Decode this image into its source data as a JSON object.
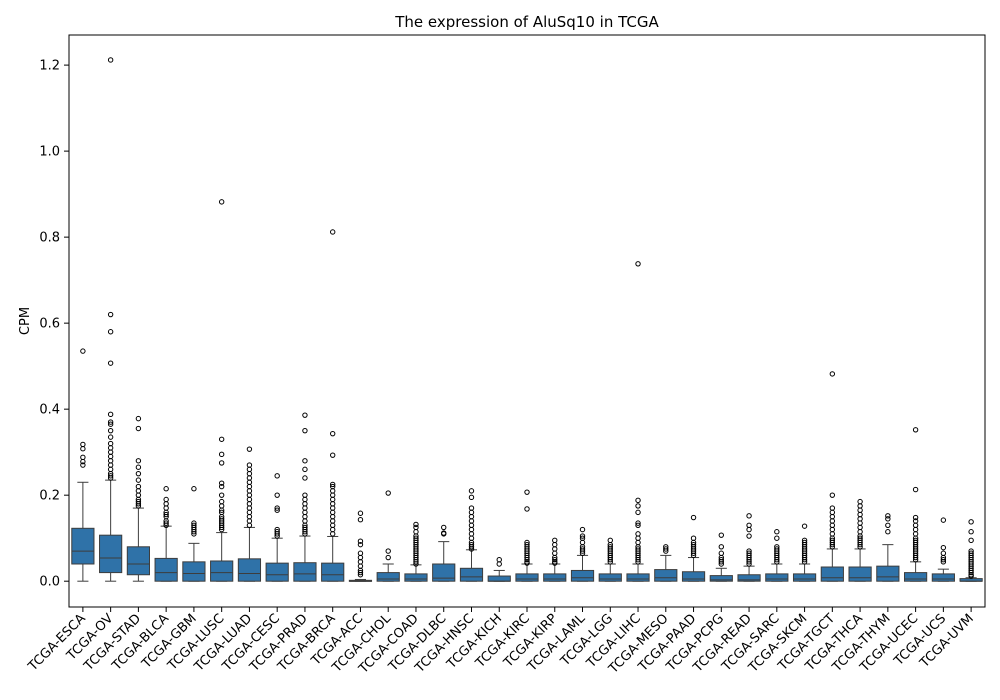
{
  "chart_data": {
    "type": "box",
    "title": "The expression of AluSq10 in TCGA",
    "xlabel": "",
    "ylabel": "CPM",
    "ylim": [
      -0.06,
      1.27
    ],
    "yticks": [
      0.0,
      0.2,
      0.4,
      0.6,
      0.8,
      1.0,
      1.2
    ],
    "ytick_labels": [
      "0.0",
      "0.2",
      "0.4",
      "0.6",
      "0.8",
      "1.0",
      "1.2"
    ],
    "box_color": "#2f72a8",
    "grid": false,
    "categories": [
      "TCGA-ESCA",
      "TCGA-OV",
      "TCGA-STAD",
      "TCGA-BLCA",
      "TCGA-GBM",
      "TCGA-LUSC",
      "TCGA-LUAD",
      "TCGA-CESC",
      "TCGA-PRAD",
      "TCGA-BRCA",
      "TCGA-ACC",
      "TCGA-CHOL",
      "TCGA-COAD",
      "TCGA-DLBC",
      "TCGA-HNSC",
      "TCGA-KICH",
      "TCGA-KIRC",
      "TCGA-KIRP",
      "TCGA-LAML",
      "TCGA-LGG",
      "TCGA-LIHC",
      "TCGA-MESO",
      "TCGA-PAAD",
      "TCGA-PCPG",
      "TCGA-READ",
      "TCGA-SARC",
      "TCGA-SKCM",
      "TCGA-TGCT",
      "TCGA-THCA",
      "TCGA-THYM",
      "TCGA-UCEC",
      "TCGA-UCS",
      "TCGA-UVM"
    ],
    "boxes": [
      {
        "min": 0.0,
        "q1": 0.04,
        "median": 0.07,
        "q3": 0.123,
        "max": 0.23,
        "outliers": [
          0.535,
          0.318,
          0.308,
          0.288,
          0.278,
          0.27
        ]
      },
      {
        "min": 0.0,
        "q1": 0.02,
        "median": 0.054,
        "q3": 0.107,
        "max": 0.235,
        "outliers": [
          1.212,
          0.62,
          0.58,
          0.507,
          0.388,
          0.37,
          0.365,
          0.35,
          0.335,
          0.32,
          0.31,
          0.3,
          0.29,
          0.28,
          0.27,
          0.26,
          0.25,
          0.245,
          0.24
        ]
      },
      {
        "min": 0.0,
        "q1": 0.015,
        "median": 0.04,
        "q3": 0.08,
        "max": 0.17,
        "outliers": [
          0.378,
          0.355,
          0.28,
          0.265,
          0.25,
          0.235,
          0.22,
          0.21,
          0.2,
          0.19,
          0.185,
          0.18,
          0.175
        ]
      },
      {
        "min": 0.0,
        "q1": 0.0,
        "median": 0.02,
        "q3": 0.053,
        "max": 0.128,
        "outliers": [
          0.215,
          0.19,
          0.18,
          0.17,
          0.16,
          0.155,
          0.15,
          0.14,
          0.135,
          0.13
        ]
      },
      {
        "min": 0.0,
        "q1": 0.0,
        "median": 0.018,
        "q3": 0.045,
        "max": 0.088,
        "outliers": [
          0.215,
          0.135,
          0.13,
          0.125,
          0.12,
          0.115,
          0.11
        ]
      },
      {
        "min": 0.0,
        "q1": 0.0,
        "median": 0.02,
        "q3": 0.047,
        "max": 0.113,
        "outliers": [
          0.882,
          0.33,
          0.295,
          0.275,
          0.228,
          0.22,
          0.2,
          0.185,
          0.175,
          0.165,
          0.16,
          0.15,
          0.145,
          0.14,
          0.135,
          0.13,
          0.125,
          0.12
        ]
      },
      {
        "min": 0.0,
        "q1": 0.0,
        "median": 0.018,
        "q3": 0.052,
        "max": 0.125,
        "outliers": [
          0.307,
          0.27,
          0.26,
          0.25,
          0.24,
          0.23,
          0.22,
          0.21,
          0.2,
          0.19,
          0.18,
          0.17,
          0.16,
          0.15,
          0.14,
          0.13
        ]
      },
      {
        "min": 0.0,
        "q1": 0.0,
        "median": 0.015,
        "q3": 0.042,
        "max": 0.1,
        "outliers": [
          0.245,
          0.2,
          0.17,
          0.165,
          0.12,
          0.115,
          0.11,
          0.105
        ]
      },
      {
        "min": 0.0,
        "q1": 0.0,
        "median": 0.017,
        "q3": 0.043,
        "max": 0.105,
        "outliers": [
          0.386,
          0.35,
          0.28,
          0.26,
          0.24,
          0.2,
          0.19,
          0.18,
          0.17,
          0.16,
          0.15,
          0.14,
          0.13,
          0.125,
          0.12,
          0.115,
          0.11
        ]
      },
      {
        "min": 0.0,
        "q1": 0.0,
        "median": 0.015,
        "q3": 0.042,
        "max": 0.104,
        "outliers": [
          0.812,
          0.343,
          0.293,
          0.225,
          0.22,
          0.21,
          0.2,
          0.19,
          0.18,
          0.17,
          0.16,
          0.15,
          0.14,
          0.13,
          0.12,
          0.11
        ]
      },
      {
        "min": 0.0,
        "q1": 0.0,
        "median": 0.0,
        "q3": 0.002,
        "max": 0.004,
        "outliers": [
          0.158,
          0.143,
          0.093,
          0.085,
          0.065,
          0.055,
          0.045,
          0.035,
          0.025,
          0.02,
          0.015
        ]
      },
      {
        "min": 0.0,
        "q1": 0.0,
        "median": 0.005,
        "q3": 0.02,
        "max": 0.04,
        "outliers": [
          0.205,
          0.07,
          0.055
        ]
      },
      {
        "min": 0.0,
        "q1": 0.0,
        "median": 0.005,
        "q3": 0.017,
        "max": 0.038,
        "outliers": [
          0.132,
          0.125,
          0.115,
          0.105,
          0.1,
          0.095,
          0.09,
          0.085,
          0.08,
          0.075,
          0.07,
          0.065,
          0.06,
          0.055,
          0.05,
          0.045,
          0.04
        ]
      },
      {
        "min": 0.0,
        "q1": 0.0,
        "median": 0.007,
        "q3": 0.04,
        "max": 0.092,
        "outliers": [
          0.125,
          0.112,
          0.11
        ]
      },
      {
        "min": 0.0,
        "q1": 0.0,
        "median": 0.01,
        "q3": 0.03,
        "max": 0.073,
        "outliers": [
          0.21,
          0.195,
          0.17,
          0.16,
          0.15,
          0.14,
          0.13,
          0.12,
          0.11,
          0.1,
          0.09,
          0.085,
          0.08,
          0.075
        ]
      },
      {
        "min": 0.0,
        "q1": 0.0,
        "median": 0.0,
        "q3": 0.012,
        "max": 0.025,
        "outliers": [
          0.05,
          0.04
        ]
      },
      {
        "min": 0.0,
        "q1": 0.0,
        "median": 0.005,
        "q3": 0.017,
        "max": 0.04,
        "outliers": [
          0.207,
          0.168,
          0.09,
          0.085,
          0.08,
          0.075,
          0.07,
          0.065,
          0.06,
          0.055,
          0.05,
          0.045,
          0.042
        ]
      },
      {
        "min": 0.0,
        "q1": 0.0,
        "median": 0.005,
        "q3": 0.017,
        "max": 0.04,
        "outliers": [
          0.095,
          0.085,
          0.075,
          0.065,
          0.055,
          0.05,
          0.045,
          0.042
        ]
      },
      {
        "min": 0.0,
        "q1": 0.0,
        "median": 0.008,
        "q3": 0.025,
        "max": 0.06,
        "outliers": [
          0.12,
          0.105,
          0.1,
          0.09,
          0.08,
          0.075,
          0.07,
          0.065
        ]
      },
      {
        "min": 0.0,
        "q1": 0.0,
        "median": 0.005,
        "q3": 0.017,
        "max": 0.04,
        "outliers": [
          0.095,
          0.085,
          0.08,
          0.075,
          0.07,
          0.065,
          0.06,
          0.055,
          0.05,
          0.045
        ]
      },
      {
        "min": 0.0,
        "q1": 0.0,
        "median": 0.005,
        "q3": 0.017,
        "max": 0.04,
        "outliers": [
          0.738,
          0.188,
          0.175,
          0.16,
          0.135,
          0.13,
          0.11,
          0.1,
          0.09,
          0.08,
          0.075,
          0.07,
          0.065,
          0.06,
          0.055,
          0.05,
          0.045
        ]
      },
      {
        "min": 0.0,
        "q1": 0.0,
        "median": 0.008,
        "q3": 0.027,
        "max": 0.06,
        "outliers": [
          0.08,
          0.075,
          0.07
        ]
      },
      {
        "min": 0.0,
        "q1": 0.0,
        "median": 0.005,
        "q3": 0.022,
        "max": 0.055,
        "outliers": [
          0.148,
          0.1,
          0.09,
          0.085,
          0.08,
          0.075,
          0.07,
          0.065,
          0.06
        ]
      },
      {
        "min": 0.0,
        "q1": 0.0,
        "median": 0.003,
        "q3": 0.013,
        "max": 0.03,
        "outliers": [
          0.107,
          0.08,
          0.065,
          0.055,
          0.05,
          0.045,
          0.04
        ]
      },
      {
        "min": 0.0,
        "q1": 0.0,
        "median": 0.003,
        "q3": 0.015,
        "max": 0.035,
        "outliers": [
          0.152,
          0.13,
          0.12,
          0.105,
          0.07,
          0.065,
          0.06,
          0.055,
          0.05,
          0.045,
          0.04
        ]
      },
      {
        "min": 0.0,
        "q1": 0.0,
        "median": 0.005,
        "q3": 0.017,
        "max": 0.04,
        "outliers": [
          0.115,
          0.1,
          0.08,
          0.075,
          0.07,
          0.065,
          0.06,
          0.055,
          0.05,
          0.045
        ]
      },
      {
        "min": 0.0,
        "q1": 0.0,
        "median": 0.005,
        "q3": 0.017,
        "max": 0.04,
        "outliers": [
          0.128,
          0.095,
          0.09,
          0.085,
          0.08,
          0.075,
          0.07,
          0.065,
          0.06,
          0.055,
          0.05,
          0.045
        ]
      },
      {
        "min": 0.0,
        "q1": 0.0,
        "median": 0.008,
        "q3": 0.033,
        "max": 0.075,
        "outliers": [
          0.482,
          0.2,
          0.17,
          0.16,
          0.15,
          0.14,
          0.13,
          0.12,
          0.11,
          0.1,
          0.095,
          0.09,
          0.085,
          0.08
        ]
      },
      {
        "min": 0.0,
        "q1": 0.0,
        "median": 0.008,
        "q3": 0.033,
        "max": 0.075,
        "outliers": [
          0.185,
          0.175,
          0.165,
          0.155,
          0.145,
          0.135,
          0.125,
          0.115,
          0.105,
          0.1,
          0.095,
          0.09,
          0.085,
          0.08
        ]
      },
      {
        "min": 0.0,
        "q1": 0.0,
        "median": 0.01,
        "q3": 0.035,
        "max": 0.085,
        "outliers": [
          0.152,
          0.145,
          0.13,
          0.115
        ]
      },
      {
        "min": 0.0,
        "q1": 0.0,
        "median": 0.005,
        "q3": 0.02,
        "max": 0.045,
        "outliers": [
          0.352,
          0.213,
          0.148,
          0.14,
          0.13,
          0.12,
          0.11,
          0.1,
          0.095,
          0.09,
          0.085,
          0.08,
          0.075,
          0.07,
          0.065,
          0.06,
          0.055,
          0.05
        ]
      },
      {
        "min": 0.0,
        "q1": 0.0,
        "median": 0.005,
        "q3": 0.017,
        "max": 0.028,
        "outliers": [
          0.142,
          0.078,
          0.065,
          0.055,
          0.05,
          0.045
        ]
      },
      {
        "min": 0.0,
        "q1": 0.0,
        "median": 0.0,
        "q3": 0.006,
        "max": 0.008,
        "outliers": [
          0.138,
          0.115,
          0.095,
          0.07,
          0.065,
          0.06,
          0.055,
          0.05,
          0.045,
          0.04,
          0.035,
          0.03,
          0.025,
          0.02,
          0.015,
          0.012
        ]
      }
    ]
  }
}
